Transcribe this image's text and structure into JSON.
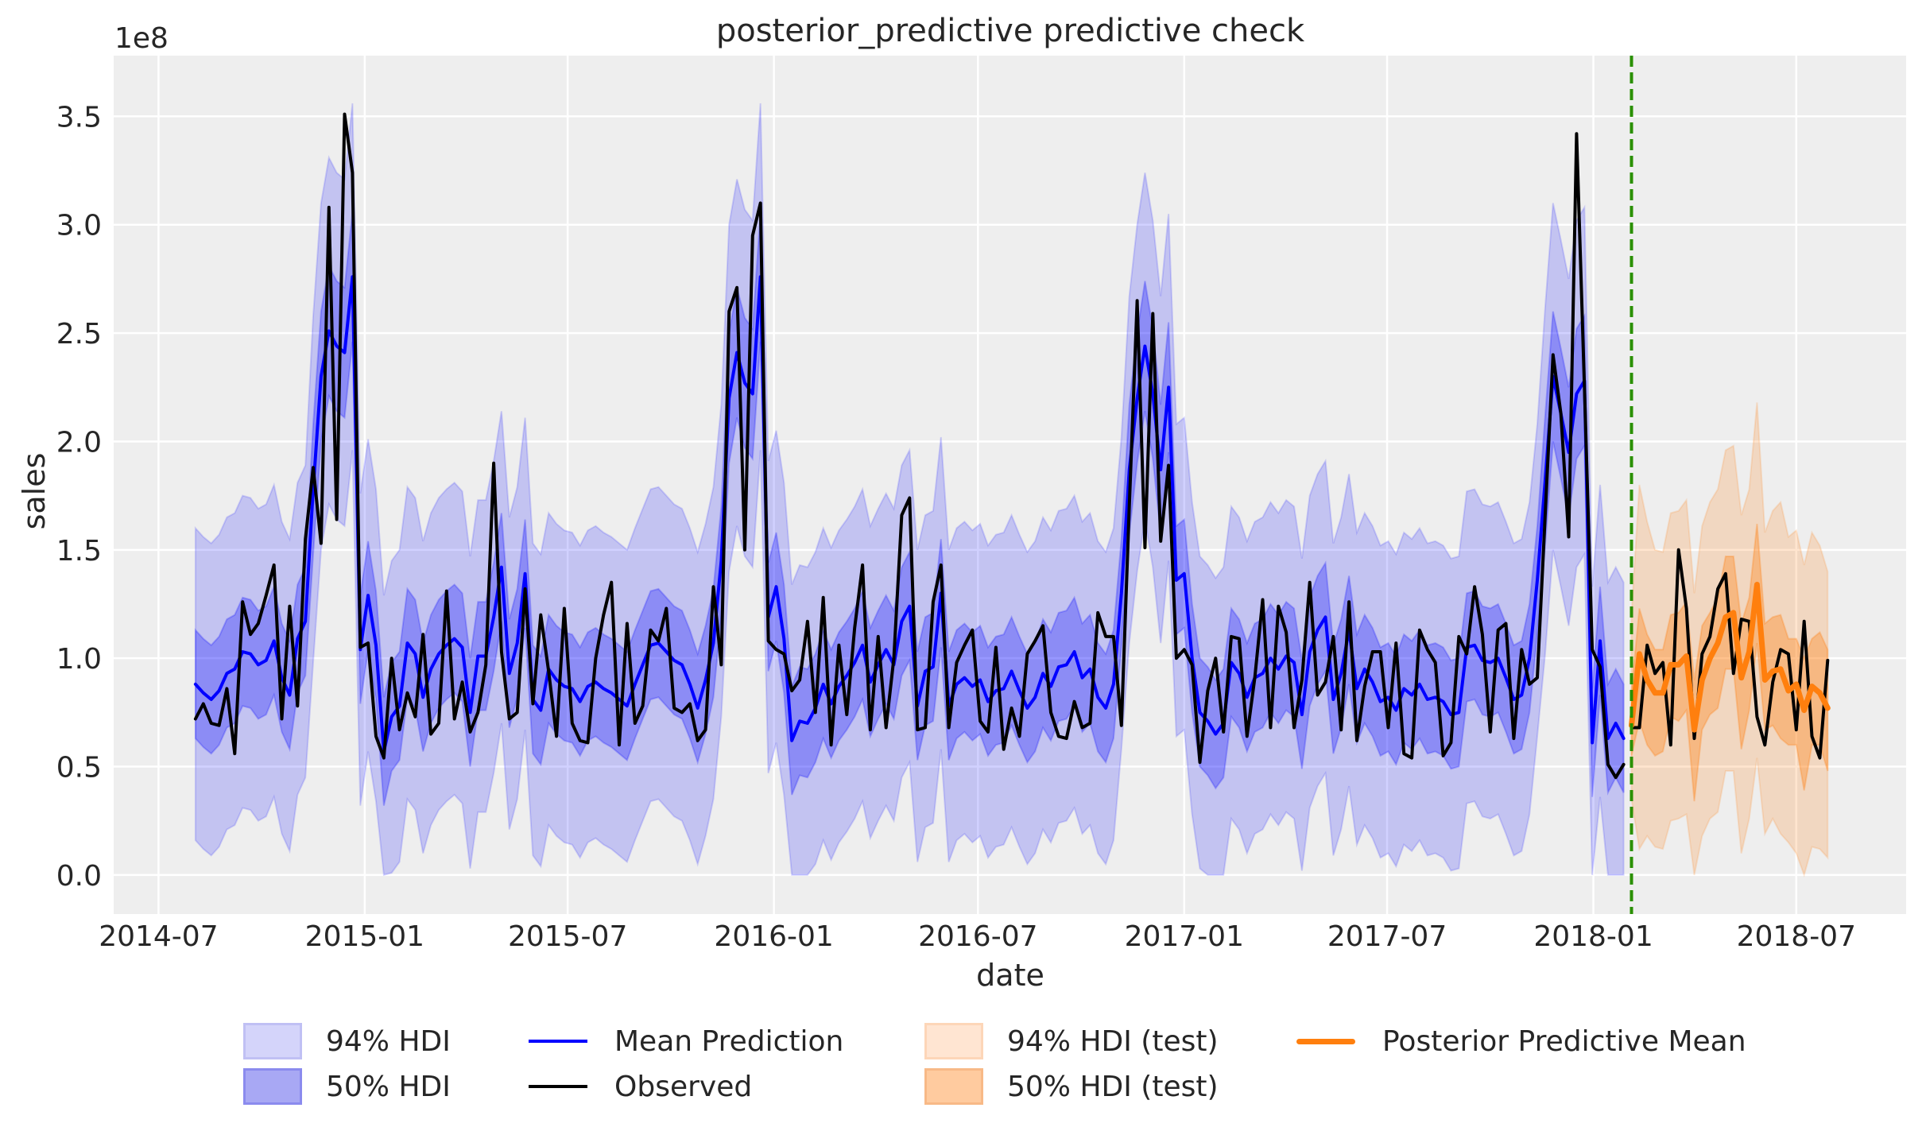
{
  "chart_data": {
    "type": "line",
    "title": "posterior_predictive predictive check",
    "xlabel": "date",
    "ylabel": "sales",
    "y_offset_label": "1e8",
    "y_scale_factor": 100000000,
    "xlim": [
      "2014-05-22",
      "2018-10-07"
    ],
    "ylim": [
      -0.18,
      3.78
    ],
    "grid": true,
    "legend_placement": "bottom (below axes), 4 columns",
    "x_ticks": [
      "2014-07",
      "2015-01",
      "2015-07",
      "2016-01",
      "2016-07",
      "2017-01",
      "2017-07",
      "2018-01",
      "2018-07"
    ],
    "y_ticks": [
      "0.0",
      "0.5",
      "1.0",
      "1.5",
      "2.0",
      "2.5",
      "3.0",
      "3.5"
    ],
    "train_dates": {
      "start": "2014-08-03",
      "end": "2018-01-28",
      "frequency": "weekly"
    },
    "test_dates": {
      "start": "2018-02-04",
      "end": "2018-07-29",
      "frequency": "weekly"
    },
    "train_test_split": "2018-02-04",
    "train": {
      "mean": [
        0.88,
        0.84,
        0.81,
        0.85,
        0.93,
        0.95,
        1.03,
        1.02,
        0.97,
        0.99,
        1.08,
        0.91,
        0.83,
        1.09,
        1.17,
        1.78,
        2.3,
        2.51,
        2.44,
        2.41,
        2.76,
        1.04,
        1.29,
        1.06,
        0.57,
        0.73,
        0.78,
        1.07,
        1.02,
        0.82,
        0.95,
        1.02,
        1.06,
        1.09,
        1.05,
        0.75,
        1.01,
        1.01,
        1.19,
        1.42,
        0.93,
        1.07,
        1.39,
        0.81,
        0.76,
        0.95,
        0.9,
        0.87,
        0.86,
        0.8,
        0.87,
        0.89,
        0.86,
        0.84,
        0.81,
        0.78,
        0.88,
        0.97,
        1.06,
        1.07,
        1.03,
        0.99,
        0.97,
        0.88,
        0.77,
        0.9,
        1.07,
        1.45,
        2.2,
        2.41,
        2.27,
        2.22,
        2.76,
        1.19,
        1.33,
        1.09,
        0.62,
        0.71,
        0.7,
        0.77,
        0.88,
        0.79,
        0.87,
        0.92,
        0.98,
        1.06,
        0.89,
        0.97,
        1.04,
        0.97,
        1.17,
        1.24,
        0.78,
        0.94,
        0.96,
        1.3,
        0.78,
        0.88,
        0.91,
        0.87,
        0.9,
        0.8,
        0.85,
        0.86,
        0.94,
        0.85,
        0.77,
        0.82,
        0.93,
        0.87,
        0.96,
        0.97,
        1.03,
        0.91,
        0.95,
        0.82,
        0.77,
        0.88,
        1.3,
        1.87,
        2.2,
        2.44,
        2.22,
        1.87,
        2.25,
        1.36,
        1.39,
        1.0,
        0.75,
        0.71,
        0.65,
        0.7,
        0.98,
        0.93,
        0.82,
        0.91,
        0.93,
        1.0,
        0.95,
        1.01,
        0.98,
        0.74,
        1.03,
        1.13,
        1.19,
        0.81,
        0.93,
        1.13,
        0.86,
        0.95,
        0.89,
        0.8,
        0.82,
        0.76,
        0.86,
        0.83,
        0.88,
        0.81,
        0.82,
        0.8,
        0.74,
        0.75,
        1.05,
        1.06,
        0.99,
        0.98,
        1.0,
        0.91,
        0.81,
        0.83,
        1.0,
        1.36,
        1.82,
        2.3,
        2.13,
        1.95,
        2.22,
        2.28,
        0.61,
        1.08,
        0.63,
        0.7,
        0.63
      ],
      "observed": [
        0.72,
        0.79,
        0.7,
        0.69,
        0.86,
        0.56,
        1.26,
        1.11,
        1.16,
        1.29,
        1.43,
        0.72,
        1.24,
        0.78,
        1.55,
        1.88,
        1.53,
        3.08,
        1.64,
        3.51,
        3.24,
        1.05,
        1.07,
        0.64,
        0.54,
        1.0,
        0.67,
        0.84,
        0.73,
        1.11,
        0.65,
        0.7,
        1.31,
        0.72,
        0.89,
        0.66,
        0.75,
        0.97,
        1.9,
        1.03,
        0.72,
        0.75,
        1.32,
        0.79,
        1.2,
        0.94,
        0.64,
        1.23,
        0.7,
        0.62,
        0.61,
        1.0,
        1.2,
        1.35,
        0.6,
        1.16,
        0.7,
        0.78,
        1.13,
        1.08,
        1.23,
        0.77,
        0.75,
        0.79,
        0.62,
        0.67,
        1.33,
        0.97,
        2.6,
        2.71,
        1.5,
        2.95,
        3.1,
        1.08,
        1.04,
        1.02,
        0.85,
        0.9,
        1.17,
        0.75,
        1.28,
        0.6,
        1.06,
        0.74,
        1.14,
        1.43,
        0.67,
        1.1,
        0.68,
        1.0,
        1.66,
        1.74,
        0.67,
        0.68,
        1.26,
        1.43,
        0.68,
        0.98,
        1.06,
        1.13,
        0.71,
        0.66,
        1.05,
        0.58,
        0.77,
        0.64,
        1.02,
        1.08,
        1.15,
        0.75,
        0.64,
        0.63,
        0.8,
        0.68,
        0.7,
        1.21,
        1.1,
        1.1,
        0.69,
        1.7,
        2.65,
        1.51,
        2.59,
        1.54,
        1.89,
        1.0,
        1.04,
        0.97,
        0.52,
        0.85,
        1.0,
        0.66,
        1.1,
        1.09,
        0.64,
        0.91,
        1.27,
        0.68,
        1.24,
        1.12,
        0.68,
        0.9,
        1.35,
        0.83,
        0.89,
        1.1,
        0.67,
        1.26,
        0.62,
        0.87,
        1.03,
        1.03,
        0.68,
        1.07,
        0.56,
        0.54,
        1.13,
        1.04,
        0.98,
        0.55,
        0.61,
        1.1,
        1.02,
        1.33,
        1.11,
        0.66,
        1.13,
        1.16,
        0.63,
        1.04,
        0.88,
        0.91,
        1.66,
        2.4,
        2.13,
        1.56,
        3.42,
        2.25,
        1.04,
        0.96,
        0.51,
        0.45,
        0.51
      ],
      "hdi_50_lower": [
        0.63,
        0.59,
        0.56,
        0.6,
        0.68,
        0.7,
        0.78,
        0.77,
        0.72,
        0.74,
        0.83,
        0.66,
        0.58,
        0.84,
        0.92,
        1.48,
        2.0,
        2.21,
        2.14,
        2.11,
        2.46,
        0.79,
        1.04,
        0.81,
        0.32,
        0.48,
        0.53,
        0.82,
        0.77,
        0.57,
        0.7,
        0.77,
        0.81,
        0.84,
        0.8,
        0.5,
        0.76,
        0.76,
        0.94,
        1.17,
        0.68,
        0.82,
        1.14,
        0.56,
        0.51,
        0.7,
        0.65,
        0.62,
        0.61,
        0.55,
        0.62,
        0.64,
        0.61,
        0.59,
        0.56,
        0.53,
        0.63,
        0.72,
        0.81,
        0.82,
        0.78,
        0.74,
        0.72,
        0.63,
        0.52,
        0.65,
        0.82,
        1.2,
        1.9,
        2.11,
        1.97,
        1.92,
        2.46,
        0.94,
        1.08,
        0.84,
        0.37,
        0.46,
        0.45,
        0.52,
        0.63,
        0.54,
        0.62,
        0.67,
        0.73,
        0.81,
        0.64,
        0.72,
        0.79,
        0.72,
        0.92,
        0.99,
        0.53,
        0.69,
        0.71,
        1.05,
        0.53,
        0.63,
        0.66,
        0.62,
        0.65,
        0.55,
        0.6,
        0.61,
        0.69,
        0.6,
        0.52,
        0.57,
        0.68,
        0.62,
        0.71,
        0.72,
        0.78,
        0.66,
        0.7,
        0.57,
        0.52,
        0.63,
        1.05,
        1.57,
        1.9,
        2.14,
        1.92,
        1.57,
        1.95,
        1.11,
        1.14,
        0.75,
        0.5,
        0.46,
        0.4,
        0.45,
        0.73,
        0.68,
        0.57,
        0.66,
        0.68,
        0.75,
        0.7,
        0.76,
        0.73,
        0.49,
        0.78,
        0.88,
        0.94,
        0.56,
        0.68,
        0.88,
        0.61,
        0.7,
        0.64,
        0.55,
        0.57,
        0.51,
        0.61,
        0.58,
        0.63,
        0.56,
        0.57,
        0.55,
        0.49,
        0.5,
        0.8,
        0.81,
        0.74,
        0.73,
        0.75,
        0.66,
        0.56,
        0.58,
        0.75,
        1.11,
        1.52,
        2.0,
        1.83,
        1.65,
        1.92,
        1.98,
        0.36,
        0.83,
        0.38,
        0.45,
        0.38
      ],
      "hdi_50_upper": [
        1.13,
        1.09,
        1.06,
        1.1,
        1.18,
        1.2,
        1.28,
        1.27,
        1.22,
        1.24,
        1.33,
        1.16,
        1.08,
        1.34,
        1.42,
        2.08,
        2.6,
        2.81,
        2.74,
        2.71,
        3.06,
        1.29,
        1.54,
        1.31,
        0.82,
        0.98,
        1.03,
        1.32,
        1.27,
        1.07,
        1.2,
        1.27,
        1.31,
        1.34,
        1.3,
        1.0,
        1.26,
        1.26,
        1.44,
        1.67,
        1.18,
        1.32,
        1.64,
        1.06,
        1.01,
        1.2,
        1.15,
        1.12,
        1.11,
        1.05,
        1.12,
        1.14,
        1.11,
        1.09,
        1.06,
        1.03,
        1.13,
        1.22,
        1.31,
        1.32,
        1.28,
        1.24,
        1.22,
        1.13,
        1.02,
        1.15,
        1.32,
        1.7,
        2.5,
        2.71,
        2.57,
        2.52,
        3.06,
        1.44,
        1.58,
        1.34,
        0.87,
        0.96,
        0.95,
        1.02,
        1.13,
        1.04,
        1.12,
        1.17,
        1.23,
        1.31,
        1.14,
        1.22,
        1.29,
        1.22,
        1.42,
        1.49,
        1.03,
        1.19,
        1.21,
        1.55,
        1.03,
        1.13,
        1.16,
        1.12,
        1.15,
        1.05,
        1.1,
        1.11,
        1.19,
        1.1,
        1.02,
        1.07,
        1.18,
        1.12,
        1.21,
        1.22,
        1.28,
        1.16,
        1.2,
        1.07,
        1.02,
        1.13,
        1.55,
        2.17,
        2.5,
        2.74,
        2.52,
        2.17,
        2.55,
        1.61,
        1.64,
        1.25,
        1.0,
        0.96,
        0.9,
        0.95,
        1.23,
        1.18,
        1.07,
        1.16,
        1.18,
        1.25,
        1.2,
        1.26,
        1.23,
        0.99,
        1.28,
        1.38,
        1.44,
        1.06,
        1.18,
        1.38,
        1.11,
        1.2,
        1.14,
        1.05,
        1.07,
        1.01,
        1.11,
        1.08,
        1.13,
        1.06,
        1.07,
        1.05,
        0.99,
        1.0,
        1.3,
        1.31,
        1.24,
        1.23,
        1.25,
        1.16,
        1.06,
        1.08,
        1.25,
        1.61,
        2.12,
        2.6,
        2.43,
        2.25,
        2.52,
        2.58,
        0.86,
        1.33,
        0.88,
        0.95,
        0.88
      ],
      "hdi_94_lower": [
        0.16,
        0.12,
        0.09,
        0.13,
        0.21,
        0.23,
        0.31,
        0.3,
        0.25,
        0.27,
        0.36,
        0.19,
        0.11,
        0.37,
        0.45,
        0.98,
        1.5,
        1.71,
        1.64,
        1.61,
        1.96,
        0.32,
        0.57,
        0.34,
        0.0,
        0.01,
        0.06,
        0.35,
        0.3,
        0.1,
        0.23,
        0.3,
        0.34,
        0.37,
        0.33,
        0.03,
        0.29,
        0.29,
        0.47,
        0.7,
        0.21,
        0.35,
        0.67,
        0.09,
        0.04,
        0.23,
        0.18,
        0.15,
        0.14,
        0.08,
        0.15,
        0.17,
        0.14,
        0.12,
        0.09,
        0.06,
        0.16,
        0.25,
        0.34,
        0.35,
        0.31,
        0.27,
        0.25,
        0.16,
        0.05,
        0.18,
        0.35,
        0.73,
        1.4,
        1.61,
        1.47,
        1.42,
        1.96,
        0.47,
        0.61,
        0.37,
        0.0,
        0.0,
        0.0,
        0.05,
        0.16,
        0.07,
        0.15,
        0.2,
        0.26,
        0.34,
        0.17,
        0.25,
        0.32,
        0.25,
        0.45,
        0.52,
        0.06,
        0.22,
        0.24,
        0.58,
        0.06,
        0.16,
        0.19,
        0.15,
        0.18,
        0.08,
        0.13,
        0.14,
        0.22,
        0.13,
        0.05,
        0.1,
        0.21,
        0.15,
        0.24,
        0.25,
        0.31,
        0.19,
        0.23,
        0.1,
        0.05,
        0.16,
        0.58,
        1.07,
        1.4,
        1.64,
        1.42,
        1.07,
        1.45,
        0.64,
        0.67,
        0.28,
        0.03,
        0.0,
        0.0,
        0.0,
        0.26,
        0.21,
        0.1,
        0.19,
        0.21,
        0.28,
        0.23,
        0.29,
        0.26,
        0.02,
        0.31,
        0.41,
        0.47,
        0.09,
        0.21,
        0.41,
        0.14,
        0.23,
        0.17,
        0.08,
        0.1,
        0.04,
        0.14,
        0.11,
        0.16,
        0.09,
        0.1,
        0.08,
        0.02,
        0.03,
        0.33,
        0.34,
        0.27,
        0.26,
        0.28,
        0.19,
        0.09,
        0.11,
        0.28,
        0.64,
        1.02,
        1.5,
        1.33,
        1.15,
        1.42,
        1.48,
        0.0,
        0.36,
        0.0,
        0.0,
        0.0
      ],
      "hdi_94_upper": [
        1.6,
        1.56,
        1.53,
        1.57,
        1.65,
        1.67,
        1.75,
        1.74,
        1.69,
        1.71,
        1.8,
        1.63,
        1.55,
        1.81,
        1.89,
        2.58,
        3.1,
        3.31,
        3.24,
        3.21,
        3.56,
        1.76,
        2.01,
        1.78,
        1.29,
        1.45,
        1.5,
        1.79,
        1.74,
        1.54,
        1.67,
        1.74,
        1.78,
        1.81,
        1.77,
        1.47,
        1.73,
        1.73,
        1.91,
        2.14,
        1.65,
        1.79,
        2.11,
        1.53,
        1.48,
        1.67,
        1.62,
        1.59,
        1.58,
        1.52,
        1.59,
        1.61,
        1.58,
        1.56,
        1.53,
        1.5,
        1.6,
        1.69,
        1.78,
        1.79,
        1.75,
        1.71,
        1.69,
        1.6,
        1.49,
        1.62,
        1.79,
        2.17,
        3.0,
        3.21,
        3.07,
        3.02,
        3.56,
        1.91,
        2.05,
        1.81,
        1.34,
        1.43,
        1.42,
        1.49,
        1.6,
        1.51,
        1.59,
        1.64,
        1.7,
        1.78,
        1.61,
        1.69,
        1.76,
        1.69,
        1.89,
        1.96,
        1.5,
        1.66,
        1.68,
        2.02,
        1.5,
        1.6,
        1.63,
        1.59,
        1.62,
        1.52,
        1.57,
        1.58,
        1.66,
        1.57,
        1.49,
        1.54,
        1.65,
        1.59,
        1.68,
        1.69,
        1.75,
        1.63,
        1.67,
        1.54,
        1.49,
        1.6,
        2.02,
        2.67,
        3.0,
        3.24,
        3.02,
        2.67,
        3.05,
        2.08,
        2.11,
        1.72,
        1.47,
        1.43,
        1.37,
        1.42,
        1.7,
        1.65,
        1.54,
        1.63,
        1.65,
        1.72,
        1.67,
        1.73,
        1.7,
        1.46,
        1.75,
        1.85,
        1.91,
        1.53,
        1.65,
        1.85,
        1.58,
        1.67,
        1.61,
        1.52,
        1.54,
        1.48,
        1.58,
        1.55,
        1.6,
        1.53,
        1.54,
        1.52,
        1.46,
        1.47,
        1.77,
        1.78,
        1.71,
        1.7,
        1.72,
        1.63,
        1.53,
        1.55,
        1.72,
        2.08,
        2.62,
        3.1,
        2.93,
        2.75,
        3.02,
        3.08,
        1.33,
        1.8,
        1.35,
        1.42,
        1.35
      ]
    },
    "test": {
      "posterior_predictive_mean": [
        0.69,
        1.02,
        0.9,
        0.84,
        0.84,
        0.97,
        0.97,
        1.01,
        0.67,
        0.9,
        1.0,
        1.07,
        1.19,
        1.21,
        0.91,
        1.03,
        1.34,
        0.9,
        0.94,
        0.95,
        0.85,
        0.88,
        0.76,
        0.87,
        0.84,
        0.77
      ],
      "observed": [
        0.68,
        0.68,
        1.06,
        0.93,
        0.98,
        0.6,
        1.5,
        1.23,
        0.63,
        1.02,
        1.1,
        1.32,
        1.39,
        0.93,
        1.18,
        1.17,
        0.73,
        0.6,
        0.89,
        1.04,
        1.02,
        0.67,
        1.17,
        0.64,
        0.54,
        0.99
      ],
      "hdi_50_lower": [
        0.55,
        0.71,
        0.6,
        0.55,
        0.57,
        0.73,
        0.71,
        0.76,
        0.34,
        0.67,
        0.74,
        0.77,
        0.95,
        0.95,
        0.58,
        0.76,
        1.07,
        0.67,
        0.69,
        0.63,
        0.6,
        0.6,
        0.39,
        0.6,
        0.6,
        0.48
      ],
      "hdi_50_upper": [
        0.85,
        1.23,
        1.11,
        1.04,
        1.04,
        1.2,
        1.21,
        1.26,
        0.9,
        1.15,
        1.21,
        1.28,
        1.47,
        1.47,
        1.16,
        1.28,
        1.62,
        1.16,
        1.19,
        1.2,
        1.09,
        1.09,
        1.0,
        1.09,
        1.12,
        1.04
      ],
      "hdi_94_lower": [
        0.35,
        0.12,
        0.18,
        0.13,
        0.12,
        0.25,
        0.26,
        0.28,
        0.0,
        0.18,
        0.26,
        0.29,
        0.48,
        0.48,
        0.1,
        0.26,
        0.54,
        0.19,
        0.26,
        0.19,
        0.15,
        0.1,
        0.0,
        0.13,
        0.12,
        0.08
      ],
      "hdi_94_upper": [
        1.2,
        1.8,
        1.63,
        1.5,
        1.49,
        1.67,
        1.68,
        1.73,
        1.3,
        1.61,
        1.72,
        1.78,
        1.96,
        1.98,
        1.66,
        1.78,
        2.18,
        1.58,
        1.68,
        1.72,
        1.56,
        1.59,
        1.43,
        1.58,
        1.52,
        1.4
      ]
    },
    "legend": [
      {
        "label": "94% HDI",
        "kind": "patch",
        "color": "#0000ff",
        "alpha": 0.2
      },
      {
        "label": "50% HDI",
        "kind": "patch",
        "color": "#0000ff",
        "alpha": 0.4
      },
      {
        "label": "Mean Prediction",
        "kind": "line",
        "color": "#0000ff"
      },
      {
        "label": "Observed",
        "kind": "line",
        "color": "#000000"
      },
      {
        "label": "94% HDI (test)",
        "kind": "patch",
        "color": "#ff7f0e",
        "alpha": 0.2
      },
      {
        "label": "50% HDI (test)",
        "kind": "patch",
        "color": "#ff7f0e",
        "alpha": 0.4
      },
      {
        "label": "Posterior Predictive Mean",
        "kind": "line",
        "color": "#ff7f0e"
      }
    ],
    "colors": {
      "train": "#0000ff",
      "test": "#ff7f0e",
      "observed": "#000000",
      "split_line": "#2a9000",
      "axes_background": "#eeeeee",
      "grid": "#ffffff"
    }
  }
}
